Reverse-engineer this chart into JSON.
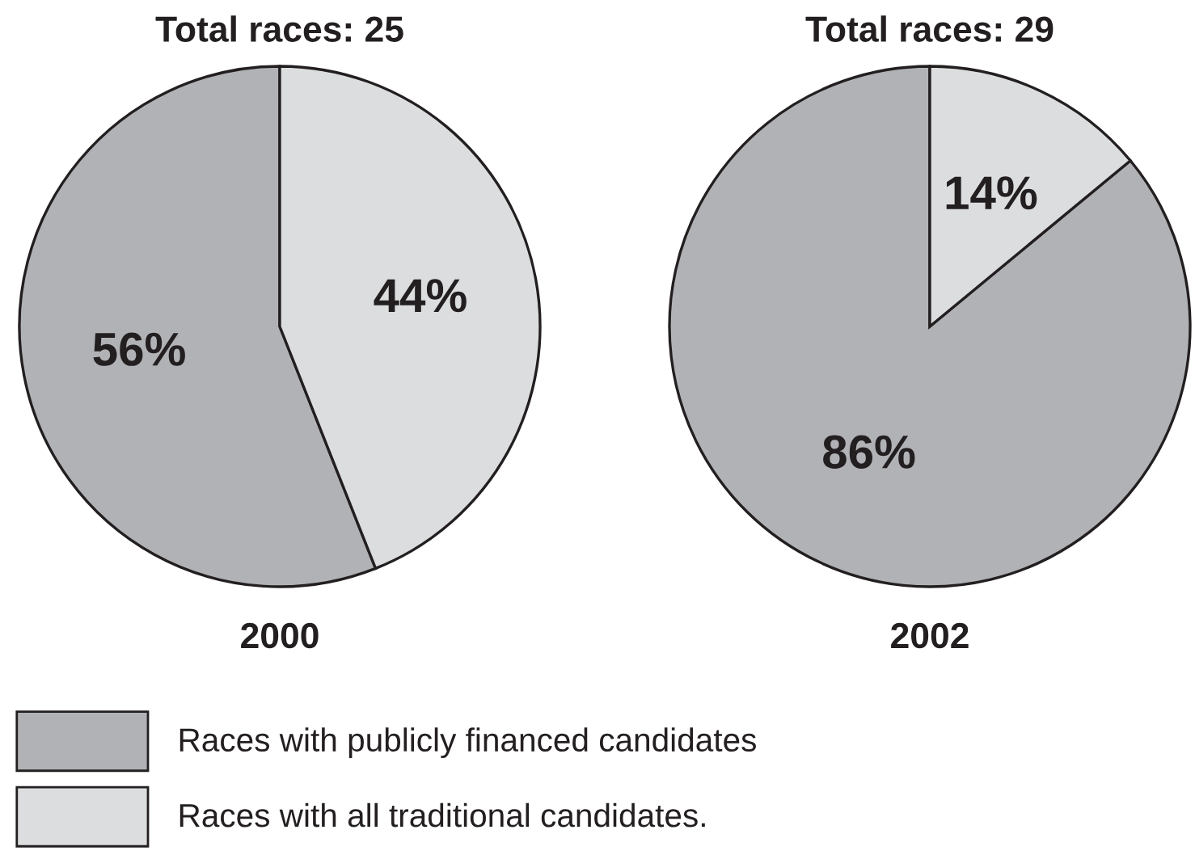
{
  "chart_data": [
    {
      "type": "pie",
      "title": "Total races: 25",
      "xlabel": "2000",
      "categories": [
        "Races with publicly financed candidates",
        "Races with all traditional candidates."
      ],
      "values": [
        56,
        44
      ],
      "colors": [
        "#b1b2b5",
        "#dcdddf"
      ],
      "value_labels": [
        "56%",
        "44%"
      ],
      "legend": "bottom right"
    },
    {
      "type": "pie",
      "title": "Total races: 29",
      "xlabel": "2002",
      "categories": [
        null,
        null
      ],
      "values": [
        86,
        14
      ],
      "colors": [
        "#b1b2b5",
        "#dcdddf"
      ],
      "value_labels": [
        "86%",
        "14%"
      ]
    }
  ]
}
